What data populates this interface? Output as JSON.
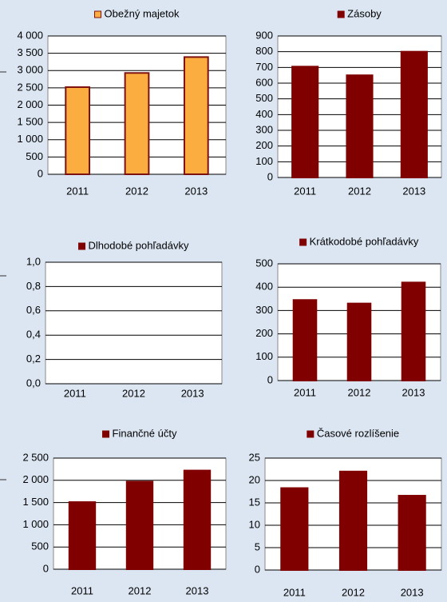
{
  "chart_data": [
    {
      "type": "bar",
      "categories": [
        "2011",
        "2012",
        "2013"
      ],
      "series": [
        {
          "name": "Obežný majetok",
          "color": "#fbae3f",
          "stroke": "#7f1010",
          "values": [
            2520,
            2930,
            3390
          ]
        }
      ],
      "ylim": [
        0,
        4000
      ],
      "yticks": [
        0,
        500,
        {
          "value": 1000,
          "label": "1 000"
        },
        {
          "value": 1500,
          "label": "1 500"
        },
        {
          "value": 2000,
          "label": "2 000"
        },
        {
          "value": 2500,
          "label": "2 500"
        },
        {
          "value": 3000,
          "label": "3 000"
        },
        {
          "value": 3500,
          "label": "3 500"
        },
        {
          "value": 4000,
          "label": "4 000"
        }
      ],
      "grid": true
    },
    {
      "type": "bar",
      "categories": [
        "2011",
        "2012",
        "2013"
      ],
      "series": [
        {
          "name": "Zásoby",
          "color": "#800000",
          "stroke": "#800000",
          "values": [
            705,
            650,
            800
          ]
        }
      ],
      "ylim": [
        0,
        900
      ],
      "yticks": [
        0,
        100,
        200,
        300,
        400,
        500,
        600,
        700,
        800,
        900
      ],
      "grid": true
    },
    {
      "type": "bar",
      "categories": [
        "2011",
        "2012",
        "2013"
      ],
      "series": [
        {
          "name": "Dlhodobé pohľadávky",
          "color": "#800000",
          "stroke": "#800000",
          "values": [
            0,
            0,
            0
          ]
        }
      ],
      "ylim": [
        0,
        1
      ],
      "yticks": [
        {
          "value": 0,
          "label": "0,0"
        },
        {
          "value": 0.2,
          "label": "0,2"
        },
        {
          "value": 0.4,
          "label": "0,4"
        },
        {
          "value": 0.6,
          "label": "0,6"
        },
        {
          "value": 0.8,
          "label": "0,8"
        },
        {
          "value": 1,
          "label": "1,0"
        }
      ],
      "grid": true
    },
    {
      "type": "bar",
      "categories": [
        "2011",
        "2012",
        "2013"
      ],
      "series": [
        {
          "name": "Krátkodobé pohľadávky",
          "color": "#800000",
          "stroke": "#800000",
          "values": [
            345,
            330,
            420
          ]
        }
      ],
      "ylim": [
        0,
        500
      ],
      "yticks": [
        0,
        100,
        200,
        300,
        400,
        500
      ],
      "grid": true
    },
    {
      "type": "bar",
      "categories": [
        "2011",
        "2012",
        "2013"
      ],
      "series": [
        {
          "name": "Finančné účty",
          "color": "#800000",
          "stroke": "#800000",
          "values": [
            1510,
            1970,
            2220
          ]
        }
      ],
      "ylim": [
        0,
        2500
      ],
      "yticks": [
        0,
        500,
        {
          "value": 1000,
          "label": "1 000"
        },
        {
          "value": 1500,
          "label": "1 500"
        },
        {
          "value": 2000,
          "label": "2 000"
        },
        {
          "value": 2500,
          "label": "2 500"
        }
      ],
      "grid": true
    },
    {
      "type": "bar",
      "categories": [
        "2011",
        "2012",
        "2013"
      ],
      "series": [
        {
          "name": "Časové rozlíšenie",
          "color": "#800000",
          "stroke": "#800000",
          "values": [
            18.3,
            22,
            16.6
          ]
        }
      ],
      "ylim": [
        0,
        25
      ],
      "yticks": [
        0,
        5,
        10,
        15,
        20,
        25
      ],
      "grid": true
    }
  ]
}
